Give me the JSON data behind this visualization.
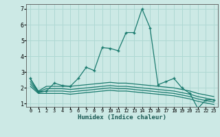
{
  "title": "",
  "xlabel": "Humidex (Indice chaleur)",
  "bg_color": "#cce9e5",
  "line_color": "#1a7a6e",
  "grid_color": "#afd8d3",
  "xlim": [
    -0.5,
    23.5
  ],
  "ylim": [
    0.8,
    7.3
  ],
  "xticks": [
    0,
    1,
    2,
    3,
    4,
    5,
    6,
    7,
    8,
    9,
    10,
    11,
    12,
    13,
    14,
    15,
    16,
    17,
    18,
    19,
    20,
    21,
    22,
    23
  ],
  "yticks": [
    1,
    2,
    3,
    4,
    5,
    6,
    7
  ],
  "main_line": {
    "x": [
      0,
      1,
      2,
      3,
      4,
      5,
      6,
      7,
      8,
      9,
      10,
      11,
      12,
      13,
      14,
      15,
      16,
      17,
      18,
      19,
      20,
      21,
      22,
      23
    ],
    "y": [
      2.6,
      1.75,
      1.8,
      2.3,
      2.15,
      2.1,
      2.6,
      3.3,
      3.1,
      4.55,
      4.5,
      4.35,
      5.5,
      5.5,
      7.0,
      5.8,
      2.2,
      2.4,
      2.6,
      2.0,
      1.65,
      0.7,
      1.25,
      1.25
    ]
  },
  "flat_lines": [
    {
      "x": [
        0,
        1,
        2,
        3,
        4,
        5,
        6,
        7,
        8,
        9,
        10,
        11,
        12,
        13,
        14,
        15,
        16,
        17,
        18,
        19,
        20,
        21,
        22,
        23
      ],
      "y": [
        2.55,
        1.8,
        2.1,
        2.1,
        2.1,
        2.1,
        2.15,
        2.2,
        2.25,
        2.3,
        2.35,
        2.3,
        2.3,
        2.25,
        2.2,
        2.15,
        2.1,
        2.05,
        2.0,
        1.9,
        1.8,
        1.65,
        1.55,
        1.45
      ]
    },
    {
      "x": [
        0,
        1,
        2,
        3,
        4,
        5,
        6,
        7,
        8,
        9,
        10,
        11,
        12,
        13,
        14,
        15,
        16,
        17,
        18,
        19,
        20,
        21,
        22,
        23
      ],
      "y": [
        2.4,
        1.75,
        1.95,
        1.95,
        1.95,
        1.9,
        1.95,
        2.0,
        2.05,
        2.1,
        2.15,
        2.1,
        2.1,
        2.05,
        2.0,
        1.95,
        1.9,
        1.85,
        1.8,
        1.7,
        1.6,
        1.45,
        1.35,
        1.25
      ]
    },
    {
      "x": [
        0,
        1,
        2,
        3,
        4,
        5,
        6,
        7,
        8,
        9,
        10,
        11,
        12,
        13,
        14,
        15,
        16,
        17,
        18,
        19,
        20,
        21,
        22,
        23
      ],
      "y": [
        2.25,
        1.7,
        1.8,
        1.8,
        1.8,
        1.75,
        1.8,
        1.85,
        1.9,
        1.95,
        2.0,
        1.95,
        1.95,
        1.9,
        1.85,
        1.8,
        1.75,
        1.7,
        1.65,
        1.55,
        1.45,
        1.3,
        1.2,
        1.1
      ]
    },
    {
      "x": [
        0,
        1,
        2,
        3,
        4,
        5,
        6,
        7,
        8,
        9,
        10,
        11,
        12,
        13,
        14,
        15,
        16,
        17,
        18,
        19,
        20,
        21,
        22,
        23
      ],
      "y": [
        2.1,
        1.65,
        1.65,
        1.65,
        1.65,
        1.6,
        1.65,
        1.7,
        1.75,
        1.8,
        1.85,
        1.8,
        1.8,
        1.75,
        1.7,
        1.65,
        1.6,
        1.55,
        1.5,
        1.4,
        1.3,
        1.15,
        1.05,
        0.95
      ]
    }
  ]
}
